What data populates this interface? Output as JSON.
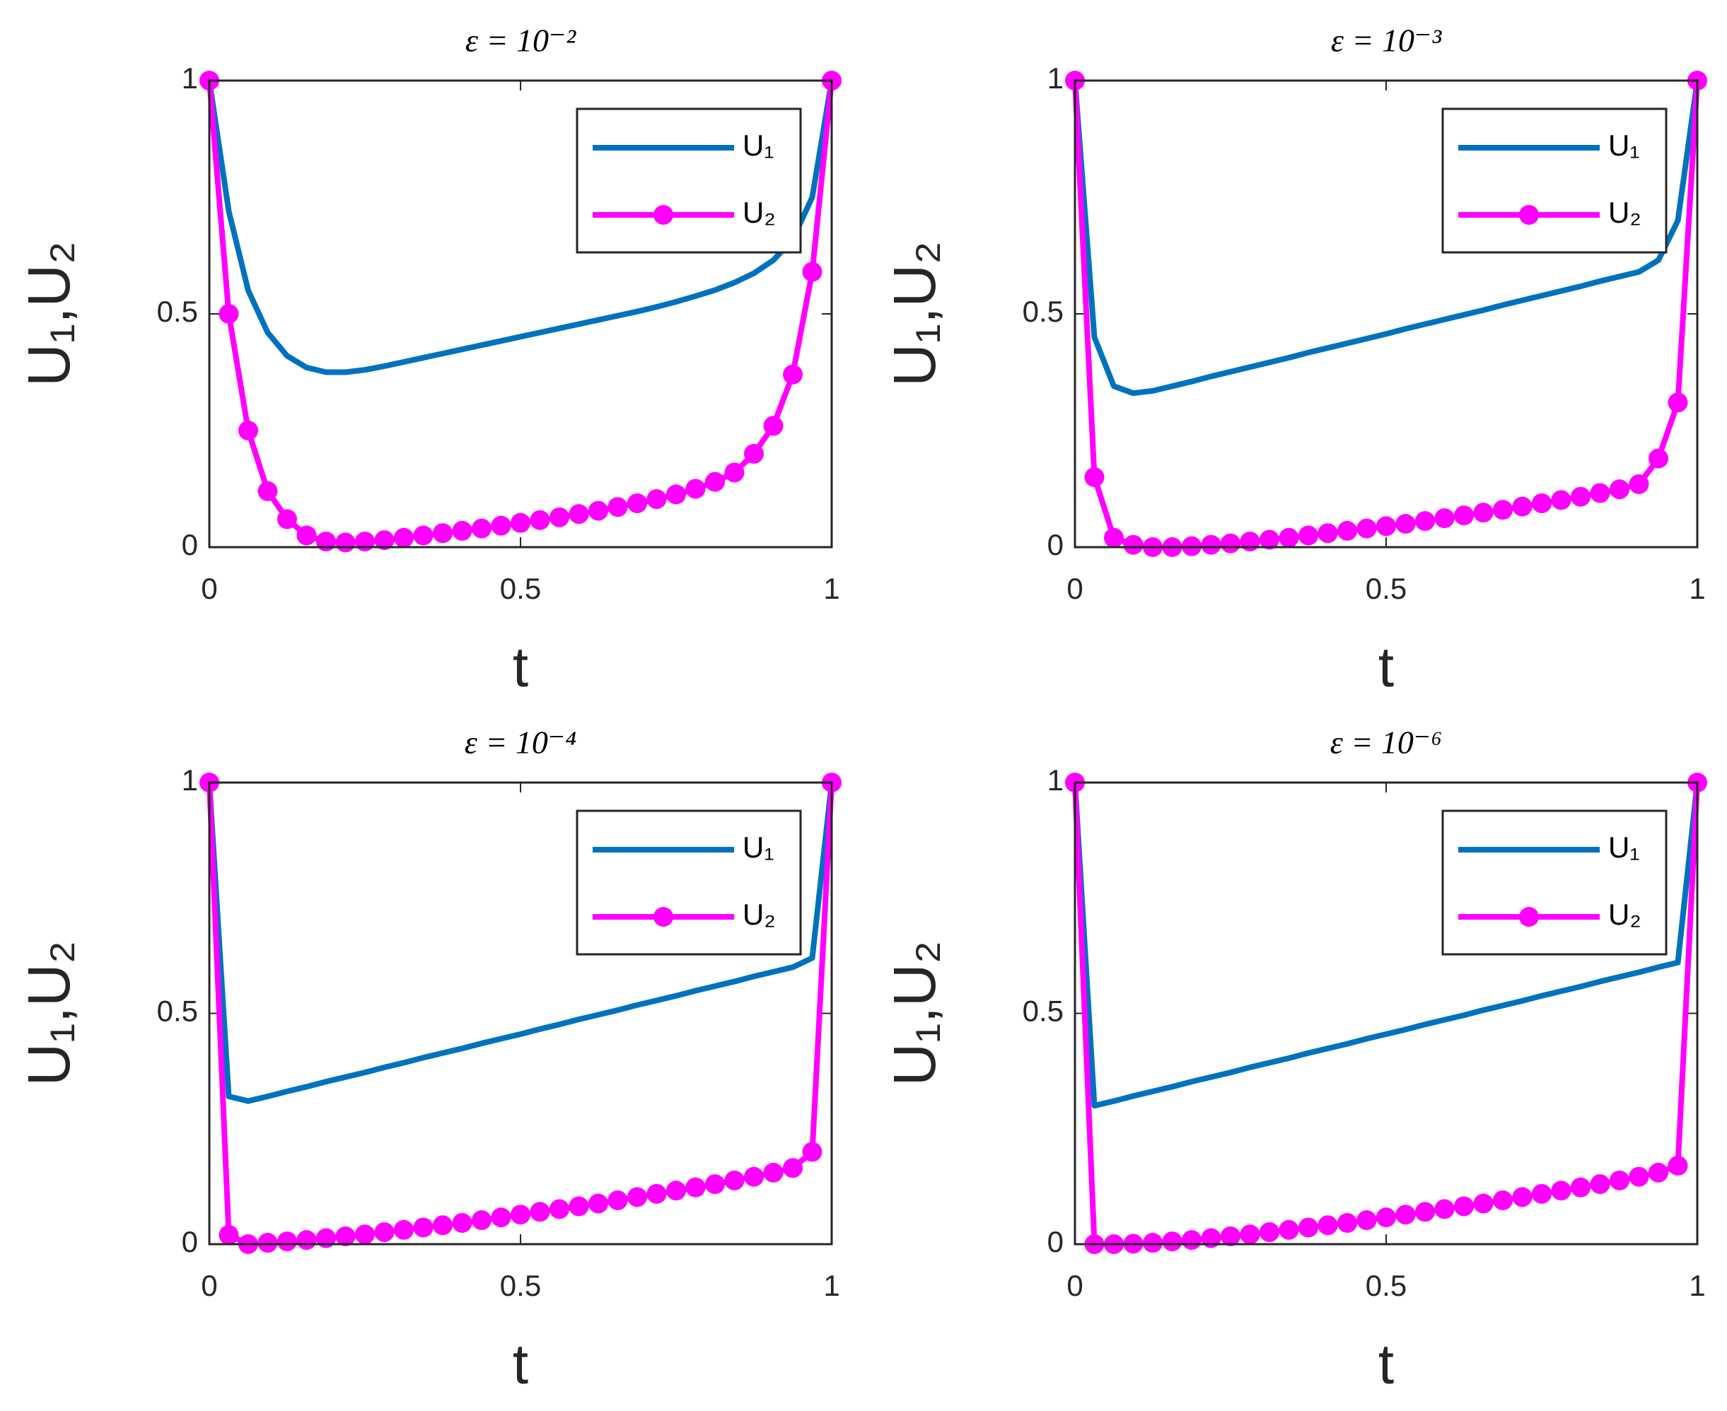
{
  "chart_data": [
    {
      "type": "line",
      "title": "ε = 10⁻²",
      "x_label": "t",
      "y_label": "U₁,U₂",
      "xlim": [
        0,
        1
      ],
      "ylim": [
        0,
        1
      ],
      "xticks": [
        0,
        0.5,
        1
      ],
      "yticks": [
        0,
        0.5,
        1
      ],
      "legend": "northeast",
      "x": [
        0,
        0.03125,
        0.0625,
        0.09375,
        0.125,
        0.15625,
        0.1875,
        0.21875,
        0.25,
        0.28125,
        0.3125,
        0.34375,
        0.375,
        0.40625,
        0.4375,
        0.46875,
        0.5,
        0.53125,
        0.5625,
        0.59375,
        0.625,
        0.65625,
        0.6875,
        0.71875,
        0.75,
        0.78125,
        0.8125,
        0.84375,
        0.875,
        0.90625,
        0.9375,
        0.96875,
        1
      ],
      "series": [
        {
          "name": "U₁",
          "color": "#0072bd",
          "values": [
            1,
            0.72,
            0.55,
            0.46,
            0.41,
            0.385,
            0.375,
            0.375,
            0.38,
            0.388,
            0.397,
            0.406,
            0.415,
            0.424,
            0.433,
            0.442,
            0.451,
            0.46,
            0.469,
            0.478,
            0.487,
            0.496,
            0.505,
            0.515,
            0.526,
            0.538,
            0.551,
            0.567,
            0.587,
            0.615,
            0.66,
            0.75,
            1
          ]
        },
        {
          "name": "U₂",
          "color": "#ff00ff",
          "marker": "o",
          "values": [
            1,
            0.5,
            0.25,
            0.12,
            0.06,
            0.025,
            0.012,
            0.01,
            0.012,
            0.015,
            0.02,
            0.025,
            0.03,
            0.035,
            0.04,
            0.046,
            0.052,
            0.058,
            0.064,
            0.071,
            0.078,
            0.086,
            0.094,
            0.103,
            0.113,
            0.125,
            0.14,
            0.16,
            0.2,
            0.26,
            0.37,
            0.59,
            1
          ]
        }
      ]
    },
    {
      "type": "line",
      "title": "ε = 10⁻³",
      "x_label": "t",
      "y_label": "U₁,U₂",
      "xlim": [
        0,
        1
      ],
      "ylim": [
        0,
        1
      ],
      "xticks": [
        0,
        0.5,
        1
      ],
      "yticks": [
        0,
        0.5,
        1
      ],
      "legend": "northeast",
      "x": [
        0,
        0.03125,
        0.0625,
        0.09375,
        0.125,
        0.15625,
        0.1875,
        0.21875,
        0.25,
        0.28125,
        0.3125,
        0.34375,
        0.375,
        0.40625,
        0.4375,
        0.46875,
        0.5,
        0.53125,
        0.5625,
        0.59375,
        0.625,
        0.65625,
        0.6875,
        0.71875,
        0.75,
        0.78125,
        0.8125,
        0.84375,
        0.875,
        0.90625,
        0.9375,
        0.96875,
        1
      ],
      "series": [
        {
          "name": "U₁",
          "color": "#0072bd",
          "values": [
            1,
            0.45,
            0.345,
            0.33,
            0.335,
            0.345,
            0.355,
            0.366,
            0.376,
            0.386,
            0.396,
            0.406,
            0.417,
            0.427,
            0.437,
            0.447,
            0.457,
            0.468,
            0.478,
            0.488,
            0.498,
            0.508,
            0.519,
            0.529,
            0.539,
            0.549,
            0.559,
            0.57,
            0.58,
            0.59,
            0.615,
            0.7,
            1
          ]
        },
        {
          "name": "U₂",
          "color": "#ff00ff",
          "marker": "o",
          "values": [
            1,
            0.15,
            0.02,
            0.005,
            0,
            0,
            0.002,
            0.005,
            0.008,
            0.012,
            0.016,
            0.02,
            0.025,
            0.03,
            0.035,
            0.04,
            0.045,
            0.05,
            0.056,
            0.062,
            0.068,
            0.074,
            0.08,
            0.087,
            0.094,
            0.101,
            0.108,
            0.116,
            0.124,
            0.135,
            0.19,
            0.31,
            1
          ]
        }
      ]
    },
    {
      "type": "line",
      "title": "ε = 10⁻⁴",
      "x_label": "t",
      "y_label": "U₁,U₂",
      "xlim": [
        0,
        1
      ],
      "ylim": [
        0,
        1
      ],
      "xticks": [
        0,
        0.5,
        1
      ],
      "yticks": [
        0,
        0.5,
        1
      ],
      "legend": "northeast",
      "x": [
        0,
        0.03125,
        0.0625,
        0.09375,
        0.125,
        0.15625,
        0.1875,
        0.21875,
        0.25,
        0.28125,
        0.3125,
        0.34375,
        0.375,
        0.40625,
        0.4375,
        0.46875,
        0.5,
        0.53125,
        0.5625,
        0.59375,
        0.625,
        0.65625,
        0.6875,
        0.71875,
        0.75,
        0.78125,
        0.8125,
        0.84375,
        0.875,
        0.90625,
        0.9375,
        0.96875,
        1
      ],
      "series": [
        {
          "name": "U₁",
          "color": "#0072bd",
          "values": [
            1,
            0.32,
            0.31,
            0.32,
            0.331,
            0.341,
            0.352,
            0.362,
            0.372,
            0.383,
            0.393,
            0.404,
            0.414,
            0.424,
            0.435,
            0.445,
            0.455,
            0.466,
            0.476,
            0.487,
            0.497,
            0.507,
            0.518,
            0.528,
            0.538,
            0.549,
            0.559,
            0.569,
            0.58,
            0.59,
            0.6,
            0.62,
            1
          ]
        },
        {
          "name": "U₂",
          "color": "#ff00ff",
          "marker": "o",
          "values": [
            1,
            0.02,
            0,
            0.003,
            0.006,
            0.009,
            0.013,
            0.017,
            0.021,
            0.026,
            0.031,
            0.036,
            0.041,
            0.046,
            0.052,
            0.058,
            0.064,
            0.07,
            0.076,
            0.082,
            0.088,
            0.095,
            0.102,
            0.109,
            0.116,
            0.123,
            0.13,
            0.138,
            0.146,
            0.155,
            0.165,
            0.2,
            1
          ]
        }
      ]
    },
    {
      "type": "line",
      "title": "ε = 10⁻⁶",
      "x_label": "t",
      "y_label": "U₁,U₂",
      "xlim": [
        0,
        1
      ],
      "ylim": [
        0,
        1
      ],
      "xticks": [
        0,
        0.5,
        1
      ],
      "yticks": [
        0,
        0.5,
        1
      ],
      "legend": "northeast",
      "x": [
        0,
        0.03125,
        0.0625,
        0.09375,
        0.125,
        0.15625,
        0.1875,
        0.21875,
        0.25,
        0.28125,
        0.3125,
        0.34375,
        0.375,
        0.40625,
        0.4375,
        0.46875,
        0.5,
        0.53125,
        0.5625,
        0.59375,
        0.625,
        0.65625,
        0.6875,
        0.71875,
        0.75,
        0.78125,
        0.8125,
        0.84375,
        0.875,
        0.90625,
        0.9375,
        0.96875,
        1
      ],
      "series": [
        {
          "name": "U₁",
          "color": "#0072bd",
          "values": [
            1,
            0.3,
            0.31,
            0.321,
            0.331,
            0.341,
            0.352,
            0.362,
            0.372,
            0.383,
            0.393,
            0.403,
            0.414,
            0.424,
            0.434,
            0.445,
            0.455,
            0.465,
            0.476,
            0.486,
            0.496,
            0.507,
            0.517,
            0.527,
            0.538,
            0.548,
            0.558,
            0.569,
            0.579,
            0.589,
            0.6,
            0.61,
            1
          ]
        },
        {
          "name": "U₂",
          "color": "#ff00ff",
          "marker": "o",
          "values": [
            1,
            0,
            0,
            0.001,
            0.003,
            0.006,
            0.009,
            0.013,
            0.017,
            0.021,
            0.026,
            0.031,
            0.036,
            0.041,
            0.046,
            0.052,
            0.058,
            0.064,
            0.07,
            0.076,
            0.082,
            0.088,
            0.095,
            0.102,
            0.109,
            0.116,
            0.123,
            0.13,
            0.138,
            0.146,
            0.155,
            0.17,
            1
          ]
        }
      ]
    }
  ]
}
